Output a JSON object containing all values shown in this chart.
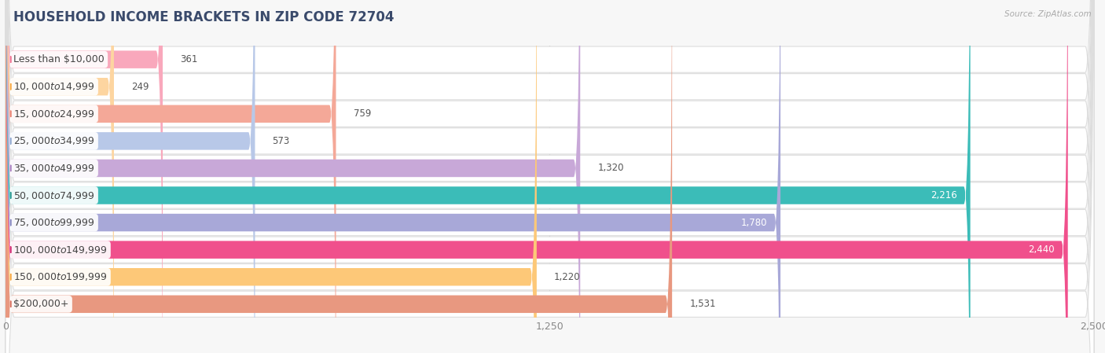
{
  "title": "HOUSEHOLD INCOME BRACKETS IN ZIP CODE 72704",
  "source": "Source: ZipAtlas.com",
  "categories": [
    "Less than $10,000",
    "$10,000 to $14,999",
    "$15,000 to $24,999",
    "$25,000 to $34,999",
    "$35,000 to $49,999",
    "$50,000 to $74,999",
    "$75,000 to $99,999",
    "$100,000 to $149,999",
    "$150,000 to $199,999",
    "$200,000+"
  ],
  "values": [
    361,
    249,
    759,
    573,
    1320,
    2216,
    1780,
    2440,
    1220,
    1531
  ],
  "bar_colors": [
    "#f9a8bc",
    "#fdd5a0",
    "#f4a898",
    "#b8c8e8",
    "#c8a8d8",
    "#3bbcb8",
    "#a8a8d8",
    "#f0508c",
    "#fdc878",
    "#e89880"
  ],
  "dot_colors": [
    "#f07090",
    "#f8a840",
    "#e88070",
    "#90a8d0",
    "#a880c0",
    "#289890",
    "#8888c0",
    "#d02870",
    "#f8a840",
    "#d87060"
  ],
  "xlim": [
    0,
    2500
  ],
  "xticks": [
    0,
    1250,
    2500
  ],
  "xtick_labels": [
    "0",
    "1,250",
    "2,500"
  ],
  "background_color": "#f7f7f7",
  "row_bg_color": "#eeeeee",
  "title_fontsize": 12,
  "label_fontsize": 9,
  "value_fontsize": 8.5,
  "bar_height": 0.65,
  "title_color": "#3a4a6b",
  "label_color": "#444444",
  "value_color_dark": "#555555",
  "value_color_light": "white"
}
